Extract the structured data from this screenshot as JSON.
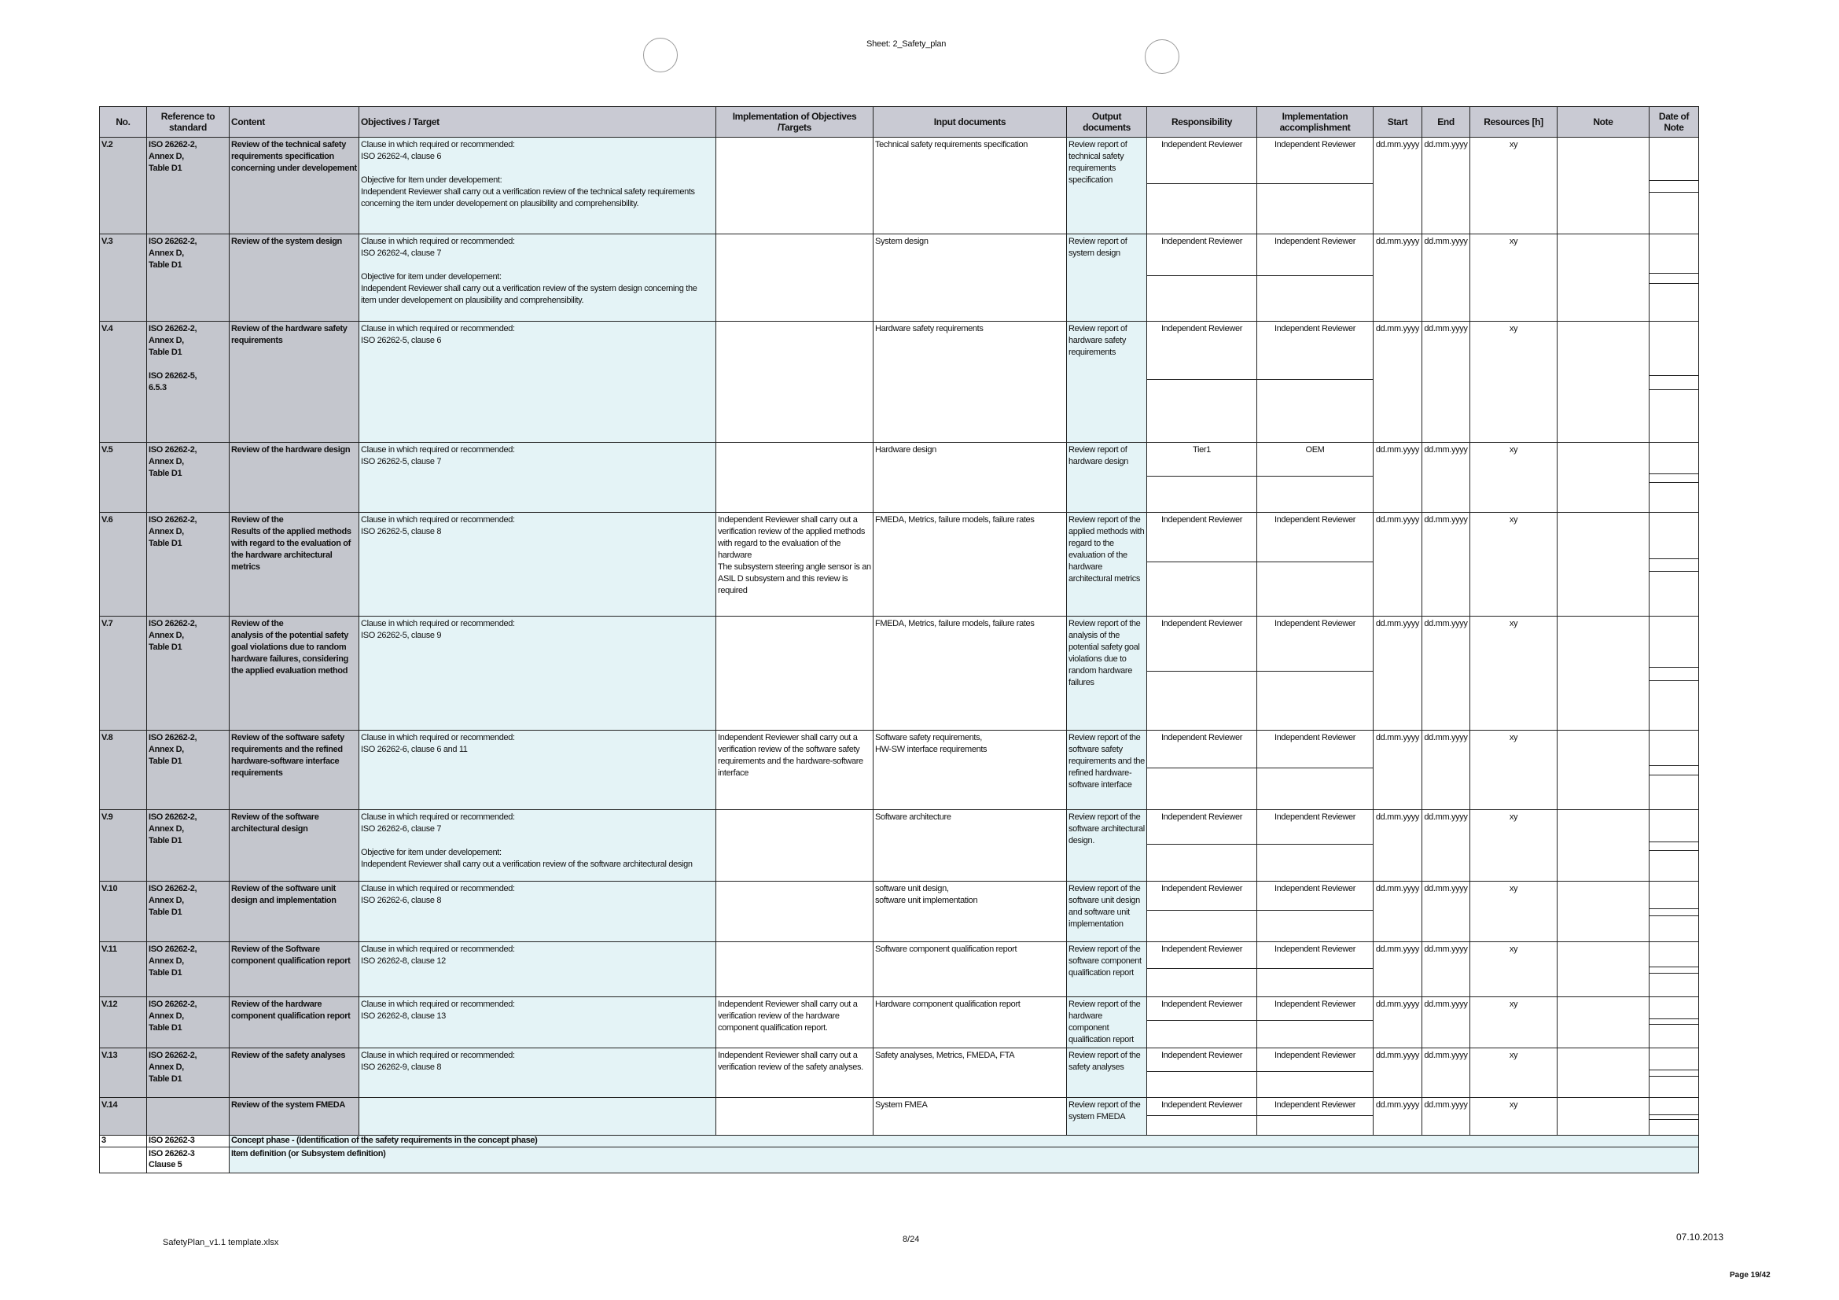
{
  "sheet_title": "Sheet: 2_Safety_plan",
  "footer": {
    "filename": "SafetyPlan_v1.1 template.xlsx",
    "sheet_page": "8/24",
    "date": "07.10.2013",
    "page": "Page 19/42"
  },
  "colors": {
    "header": "#c9cad3",
    "grey_columns": "#c4c6cd",
    "blue_columns": "#e4f3f6"
  },
  "columns": [
    "No.",
    "Reference to standard",
    "Content",
    "Objectives / Target",
    "Implementation of Objectives /Targets",
    "Input documents",
    "Output documents",
    "Responsibility",
    "Implementation accomplishment",
    "Start",
    "End",
    "Resources [h]",
    "Note",
    "Date of Note"
  ],
  "rows": [
    {
      "no": "V.2",
      "ref": "ISO 26262-2,\nAnnex D,\nTable D1",
      "content": "Review of the technical safety requirements specification concerning under developement",
      "objectives": "Clause in which required or recommended:\nISO 26262-4, clause 6\n\nObjective for Item under developement:\nIndependent Reviewer shall carry out a verification review of the technical safety requirements concerning the item under developement on plausibility and comprehensibility.",
      "implementation": "",
      "input": "Technical safety requirements specification",
      "output": "Review report of technical safety requirements specification",
      "responsibility": "Independent Reviewer",
      "accomplishment": "Independent Reviewer",
      "start": "dd.mm.yyyy",
      "end": "dd.mm.yyyy",
      "resources": "xy",
      "note": ""
    },
    {
      "no": "V.3",
      "ref": "ISO 26262-2,\nAnnex D,\nTable D1",
      "content": "Review of the system design",
      "objectives": "Clause in which required or recommended:\nISO 26262-4, clause 7\n\nObjective for item under developement:\nIndependent Reviewer shall carry out a verification review of the system design concerning the item under developement on plausibility and comprehensibility.",
      "implementation": "",
      "input": "System design",
      "output": "Review report of system design",
      "responsibility": "Independent Reviewer",
      "accomplishment": "Independent Reviewer",
      "start": "dd.mm.yyyy",
      "end": "dd.mm.yyyy",
      "resources": "xy",
      "note": ""
    },
    {
      "no": "V.4",
      "ref": "ISO 26262-2,\nAnnex D,\nTable D1\n\nISO 26262-5,\n6.5.3",
      "content": "Review of the hardware safety requirements",
      "objectives": "Clause in which required or recommended:\nISO 26262-5, clause 6",
      "implementation": "",
      "input": "Hardware safety requirements",
      "output": "Review report of hardware safety requirements",
      "responsibility": "Independent Reviewer",
      "accomplishment": "Independent Reviewer",
      "start": "dd.mm.yyyy",
      "end": "dd.mm.yyyy",
      "resources": "xy",
      "note": ""
    },
    {
      "no": "V.5",
      "ref": "ISO 26262-2,\nAnnex D,\nTable D1",
      "content": "Review of the hardware design",
      "objectives": "Clause in which required or recommended:\nISO 26262-5, clause 7",
      "implementation": "",
      "input": "Hardware design",
      "output": "Review report of hardware design",
      "responsibility": "Tier1",
      "accomplishment": "OEM",
      "start": "dd.mm.yyyy",
      "end": "dd.mm.yyyy",
      "resources": "xy",
      "note": ""
    },
    {
      "no": "V.6",
      "ref": "ISO 26262-2,\nAnnex D,\nTable D1",
      "content": "Review of the\nResults of the applied methods with regard to the evaluation of the hardware architectural metrics",
      "objectives": "Clause in which required or recommended:\nISO 26262-5, clause 8",
      "implementation": "Independent Reviewer shall carry out a verification review of the applied methods with regard to the evaluation of the hardware\nThe subsystem steering angle sensor is an ASIL D subsystem and this review is required",
      "input": "FMEDA, Metrics, failure models, failure rates",
      "output": "Review report of the applied methods with regard to the evaluation of the hardware architectural metrics",
      "responsibility": "Independent Reviewer",
      "accomplishment": "Independent Reviewer",
      "start": "dd.mm.yyyy",
      "end": "dd.mm.yyyy",
      "resources": "xy",
      "note": ""
    },
    {
      "no": "V.7",
      "ref": "ISO 26262-2,\nAnnex D,\nTable D1",
      "content": "Review of the\nanalysis of the potential safety goal violations due to random hardware failures, considering the applied evaluation method",
      "objectives": "Clause in which required or recommended:\nISO 26262-5, clause 9",
      "implementation": "",
      "input": "FMEDA, Metrics, failure models, failure rates",
      "output": "Review report of the analysis of the potential safety goal violations due to random hardware failures",
      "responsibility": "Independent Reviewer",
      "accomplishment": "Independent Reviewer",
      "start": "dd.mm.yyyy",
      "end": "dd.mm.yyyy",
      "resources": "xy",
      "note": ""
    },
    {
      "no": "V.8",
      "ref": "ISO 26262-2,\nAnnex D,\nTable D1",
      "content": "Review of the software safety requirements and the refined hardware-software interface requirements",
      "objectives": "Clause in which required or recommended:\nISO 26262-6, clause 6 and 11",
      "implementation": "Independent Reviewer shall carry out a verification review of the software safety requirements and the hardware-software interface",
      "input": "Software safety requirements,\nHW-SW interface requirements",
      "output": "Review report of the software safety requirements and the refined hardware-software interface",
      "responsibility": "Independent Reviewer",
      "accomplishment": "Independent Reviewer",
      "start": "dd.mm.yyyy",
      "end": "dd.mm.yyyy",
      "resources": "xy",
      "note": ""
    },
    {
      "no": "V.9",
      "ref": "ISO 26262-2,\nAnnex D,\nTable D1",
      "content": "Review of the software architectural design",
      "objectives": "Clause in which required or recommended:\nISO 26262-6, clause 7\n\nObjective for item under developement:\nIndependent Reviewer shall carry out a verification review of the software architectural design",
      "implementation": "",
      "input": "Software architecture",
      "output": "Review report of the software architectural design.",
      "responsibility": "Independent Reviewer",
      "accomplishment": "Independent Reviewer",
      "start": "dd.mm.yyyy",
      "end": "dd.mm.yyyy",
      "resources": "xy",
      "note": ""
    },
    {
      "no": "V.10",
      "ref": "ISO 26262-2,\nAnnex D,\nTable D1",
      "content": "Review of the software unit design and implementation",
      "objectives": "Clause in which required or recommended:\nISO 26262-6, clause 8",
      "implementation": "",
      "input": "software unit design,\nsoftware unit implementation",
      "output": "Review report of the software unit design and software unit implementation",
      "responsibility": "Independent Reviewer",
      "accomplishment": "Independent Reviewer",
      "start": "dd.mm.yyyy",
      "end": "dd.mm.yyyy",
      "resources": "xy",
      "note": ""
    },
    {
      "no": "V.11",
      "ref": "ISO 26262-2,\nAnnex D,\nTable D1",
      "content": "Review of the Software component qualification report",
      "objectives": "Clause in which required or recommended:\nISO 26262-8, clause 12",
      "implementation": "",
      "input": "Software component qualification report",
      "output": "Review report of the software component qualification report",
      "responsibility": "Independent Reviewer",
      "accomplishment": "Independent Reviewer",
      "start": "dd.mm.yyyy",
      "end": "dd.mm.yyyy",
      "resources": "xy",
      "note": ""
    },
    {
      "no": "V.12",
      "ref": "ISO 26262-2,\nAnnex D,\nTable D1",
      "content": "Review of the hardware component qualification report",
      "objectives": "Clause in which required or recommended:\nISO 26262-8, clause 13",
      "implementation": "Independent Reviewer shall carry out a verification review of the hardware component qualification report.",
      "input": "Hardware component qualification report",
      "output": "Review report of the hardware component qualification report",
      "responsibility": "Independent Reviewer",
      "accomplishment": "Independent Reviewer",
      "start": "dd.mm.yyyy",
      "end": "dd.mm.yyyy",
      "resources": "xy",
      "note": ""
    },
    {
      "no": "V.13",
      "ref": "ISO 26262-2,\nAnnex D,\nTable D1",
      "content": "Review of the safety analyses",
      "objectives": "Clause in which required or recommended:\nISO 26262-9, clause 8",
      "implementation": "Independent Reviewer shall carry out a verification review of the safety analyses.",
      "input": "Safety analyses, Metrics, FMEDA, FTA",
      "output": "Review report of the safety analyses",
      "responsibility": "Independent Reviewer",
      "accomplishment": "Independent Reviewer",
      "start": "dd.mm.yyyy",
      "end": "dd.mm.yyyy",
      "resources": "xy",
      "note": ""
    },
    {
      "no": "V.14",
      "ref": "",
      "content": "Review of the system FMEDA",
      "objectives": "",
      "implementation": "",
      "input": "System FMEA",
      "output": "Review report of the system FMEDA",
      "responsibility": "Independent Reviewer",
      "accomplishment": "Independent Reviewer",
      "start": "dd.mm.yyyy",
      "end": "dd.mm.yyyy",
      "resources": "xy",
      "note": ""
    }
  ],
  "phase_rows": [
    {
      "no": "3",
      "ref": "ISO 26262-3",
      "content": "Concept phase - (Identification of the safety requirements in the concept phase)"
    },
    {
      "no": "",
      "ref": "ISO 26262-3\nClause 5",
      "content": "Item definition (or Subsystem definition)"
    }
  ]
}
